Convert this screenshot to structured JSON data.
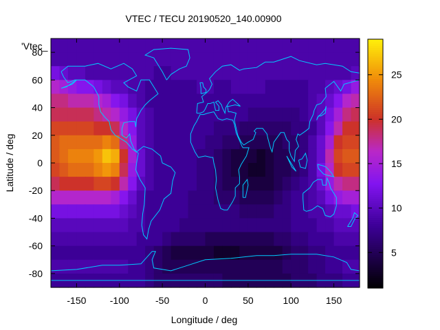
{
  "chart_data": {
    "type": "heatmap",
    "title": "VTEC / TECU 20190520_140.00900",
    "xlabel": "Longitude / deg",
    "ylabel": "Latitude / deg",
    "key_label": "'Vtec_",
    "xlim": [
      -180,
      180
    ],
    "ylim": [
      -90,
      90
    ],
    "x_ticks": [
      -150,
      -100,
      -50,
      0,
      50,
      100,
      150
    ],
    "y_ticks": [
      -80,
      -60,
      -40,
      -20,
      0,
      20,
      40,
      60,
      80
    ],
    "colorbar": {
      "min": 1,
      "max": 29,
      "ticks": [
        5,
        10,
        15,
        20,
        25
      ],
      "palette": "black-purple-red-orange-yellow"
    },
    "grid": false,
    "legend": "none",
    "description_of_field": {
      "longitudes": [
        -175,
        -165,
        -155,
        -145,
        -135,
        -125,
        -115,
        -105,
        -95,
        -85,
        -75,
        -65,
        -55,
        -45,
        -35,
        -25,
        -15,
        -5,
        5,
        15,
        25,
        35,
        45,
        55,
        65,
        75,
        85,
        95,
        105,
        115,
        125,
        135,
        145,
        155,
        165,
        175
      ],
      "latitudes": [
        85,
        75,
        65,
        55,
        45,
        35,
        25,
        15,
        5,
        -5,
        -15,
        -25,
        -35,
        -45,
        -55,
        -65,
        -75,
        -85
      ],
      "values": [
        [
          9,
          9,
          9,
          9,
          9,
          9,
          9,
          9,
          9,
          9,
          9,
          9,
          9,
          9,
          9,
          9,
          9,
          9,
          9,
          9,
          9,
          9,
          9,
          9,
          9,
          9,
          9,
          9,
          9,
          9,
          9,
          9,
          9,
          9,
          9,
          9
        ],
        [
          9,
          9,
          9,
          9,
          9,
          9,
          9,
          9,
          9,
          9,
          9,
          9,
          9,
          9,
          9,
          9,
          9,
          9,
          9,
          9,
          9,
          9,
          9,
          9,
          9,
          9,
          9,
          9,
          9,
          9,
          9,
          9,
          9,
          9,
          9,
          9
        ],
        [
          12,
          11,
          10,
          10,
          9,
          9,
          9,
          9,
          9,
          9,
          9,
          9,
          8,
          8,
          9,
          9,
          9,
          9,
          9,
          9,
          9,
          9,
          9,
          9,
          9,
          9,
          9,
          9,
          9,
          9,
          9,
          9,
          9,
          9,
          9,
          10
        ],
        [
          16,
          15,
          14,
          13,
          13,
          12,
          11,
          10,
          10,
          9,
          9,
          8,
          8,
          8,
          8,
          8,
          8,
          9,
          9,
          8,
          8,
          9,
          9,
          9,
          9,
          8,
          8,
          8,
          8,
          8,
          9,
          9,
          10,
          11,
          12,
          14
        ],
        [
          18,
          18,
          17,
          17,
          17,
          16,
          15,
          13,
          12,
          10,
          9,
          8,
          8,
          8,
          8,
          8,
          8,
          8,
          8,
          8,
          8,
          8,
          8,
          8,
          8,
          8,
          8,
          8,
          8,
          8,
          9,
          10,
          11,
          13,
          16,
          17
        ],
        [
          19,
          19,
          19,
          19,
          19,
          18,
          17,
          16,
          14,
          12,
          10,
          9,
          8,
          8,
          8,
          8,
          8,
          8,
          8,
          8,
          8,
          8,
          8,
          7,
          7,
          7,
          7,
          7,
          7,
          8,
          9,
          10,
          12,
          15,
          18,
          19
        ],
        [
          21,
          21,
          21,
          21,
          21,
          20,
          20,
          19,
          16,
          13,
          10,
          9,
          8,
          8,
          8,
          8,
          8,
          8,
          8,
          7,
          7,
          7,
          6,
          6,
          6,
          6,
          6,
          6,
          7,
          7,
          8,
          10,
          13,
          17,
          20,
          20
        ],
        [
          22,
          23,
          23,
          23,
          23,
          23,
          24,
          23,
          18,
          14,
          10,
          9,
          8,
          8,
          8,
          8,
          8,
          8,
          7,
          7,
          6,
          6,
          5,
          5,
          5,
          5,
          5,
          6,
          6,
          7,
          9,
          11,
          15,
          20,
          21,
          21
        ],
        [
          22,
          23,
          24,
          24,
          24,
          25,
          27,
          26,
          20,
          15,
          11,
          9,
          8,
          8,
          8,
          8,
          8,
          7,
          7,
          6,
          5,
          4,
          4,
          4,
          3,
          4,
          5,
          5,
          6,
          7,
          9,
          11,
          17,
          21,
          22,
          22
        ],
        [
          21,
          22,
          23,
          23,
          23,
          24,
          25,
          24,
          19,
          14,
          11,
          9,
          8,
          8,
          8,
          8,
          8,
          7,
          7,
          6,
          5,
          4,
          4,
          3,
          3,
          4,
          5,
          5,
          6,
          7,
          9,
          12,
          16,
          20,
          21,
          21
        ],
        [
          19,
          20,
          20,
          20,
          20,
          21,
          21,
          20,
          17,
          13,
          10,
          9,
          8,
          8,
          8,
          8,
          8,
          7,
          7,
          6,
          5,
          5,
          4,
          4,
          4,
          4,
          5,
          6,
          7,
          8,
          9,
          11,
          14,
          17,
          18,
          18
        ],
        [
          16,
          16,
          16,
          16,
          16,
          16,
          16,
          15,
          13,
          11,
          9,
          8,
          8,
          8,
          8,
          8,
          7,
          7,
          7,
          6,
          6,
          6,
          5,
          5,
          5,
          5,
          6,
          7,
          8,
          8,
          9,
          10,
          12,
          14,
          15,
          15
        ],
        [
          12,
          12,
          12,
          12,
          12,
          12,
          12,
          12,
          11,
          10,
          9,
          8,
          8,
          8,
          8,
          8,
          7,
          7,
          7,
          7,
          7,
          7,
          6,
          6,
          6,
          6,
          7,
          7,
          8,
          8,
          9,
          9,
          10,
          11,
          11,
          12
        ],
        [
          10,
          10,
          10,
          10,
          10,
          10,
          10,
          10,
          10,
          9,
          9,
          8,
          8,
          8,
          8,
          7,
          7,
          7,
          7,
          7,
          7,
          7,
          7,
          7,
          7,
          7,
          7,
          7,
          8,
          8,
          8,
          9,
          9,
          10,
          10,
          10
        ],
        [
          9,
          9,
          9,
          9,
          9,
          9,
          9,
          9,
          9,
          9,
          8,
          8,
          8,
          7,
          6,
          6,
          6,
          6,
          5,
          5,
          5,
          5,
          5,
          5,
          5,
          5,
          6,
          6,
          7,
          7,
          8,
          8,
          8,
          9,
          9,
          9
        ],
        [
          8,
          8,
          8,
          8,
          8,
          8,
          8,
          8,
          8,
          8,
          8,
          7,
          6,
          5,
          4,
          4,
          4,
          4,
          4,
          3,
          3,
          3,
          4,
          4,
          4,
          4,
          4,
          5,
          6,
          6,
          7,
          7,
          8,
          8,
          8,
          8
        ],
        [
          9,
          9,
          9,
          9,
          9,
          9,
          9,
          9,
          9,
          8,
          8,
          7,
          6,
          5,
          5,
          5,
          5,
          5,
          5,
          5,
          5,
          5,
          5,
          5,
          5,
          5,
          5,
          6,
          6,
          6,
          7,
          7,
          8,
          8,
          9,
          9
        ],
        [
          8,
          8,
          8,
          8,
          8,
          8,
          8,
          8,
          8,
          8,
          8,
          7,
          6,
          6,
          6,
          6,
          6,
          6,
          6,
          6,
          5,
          5,
          5,
          5,
          5,
          5,
          5,
          5,
          6,
          6,
          6,
          7,
          7,
          7,
          8,
          8
        ]
      ]
    }
  }
}
